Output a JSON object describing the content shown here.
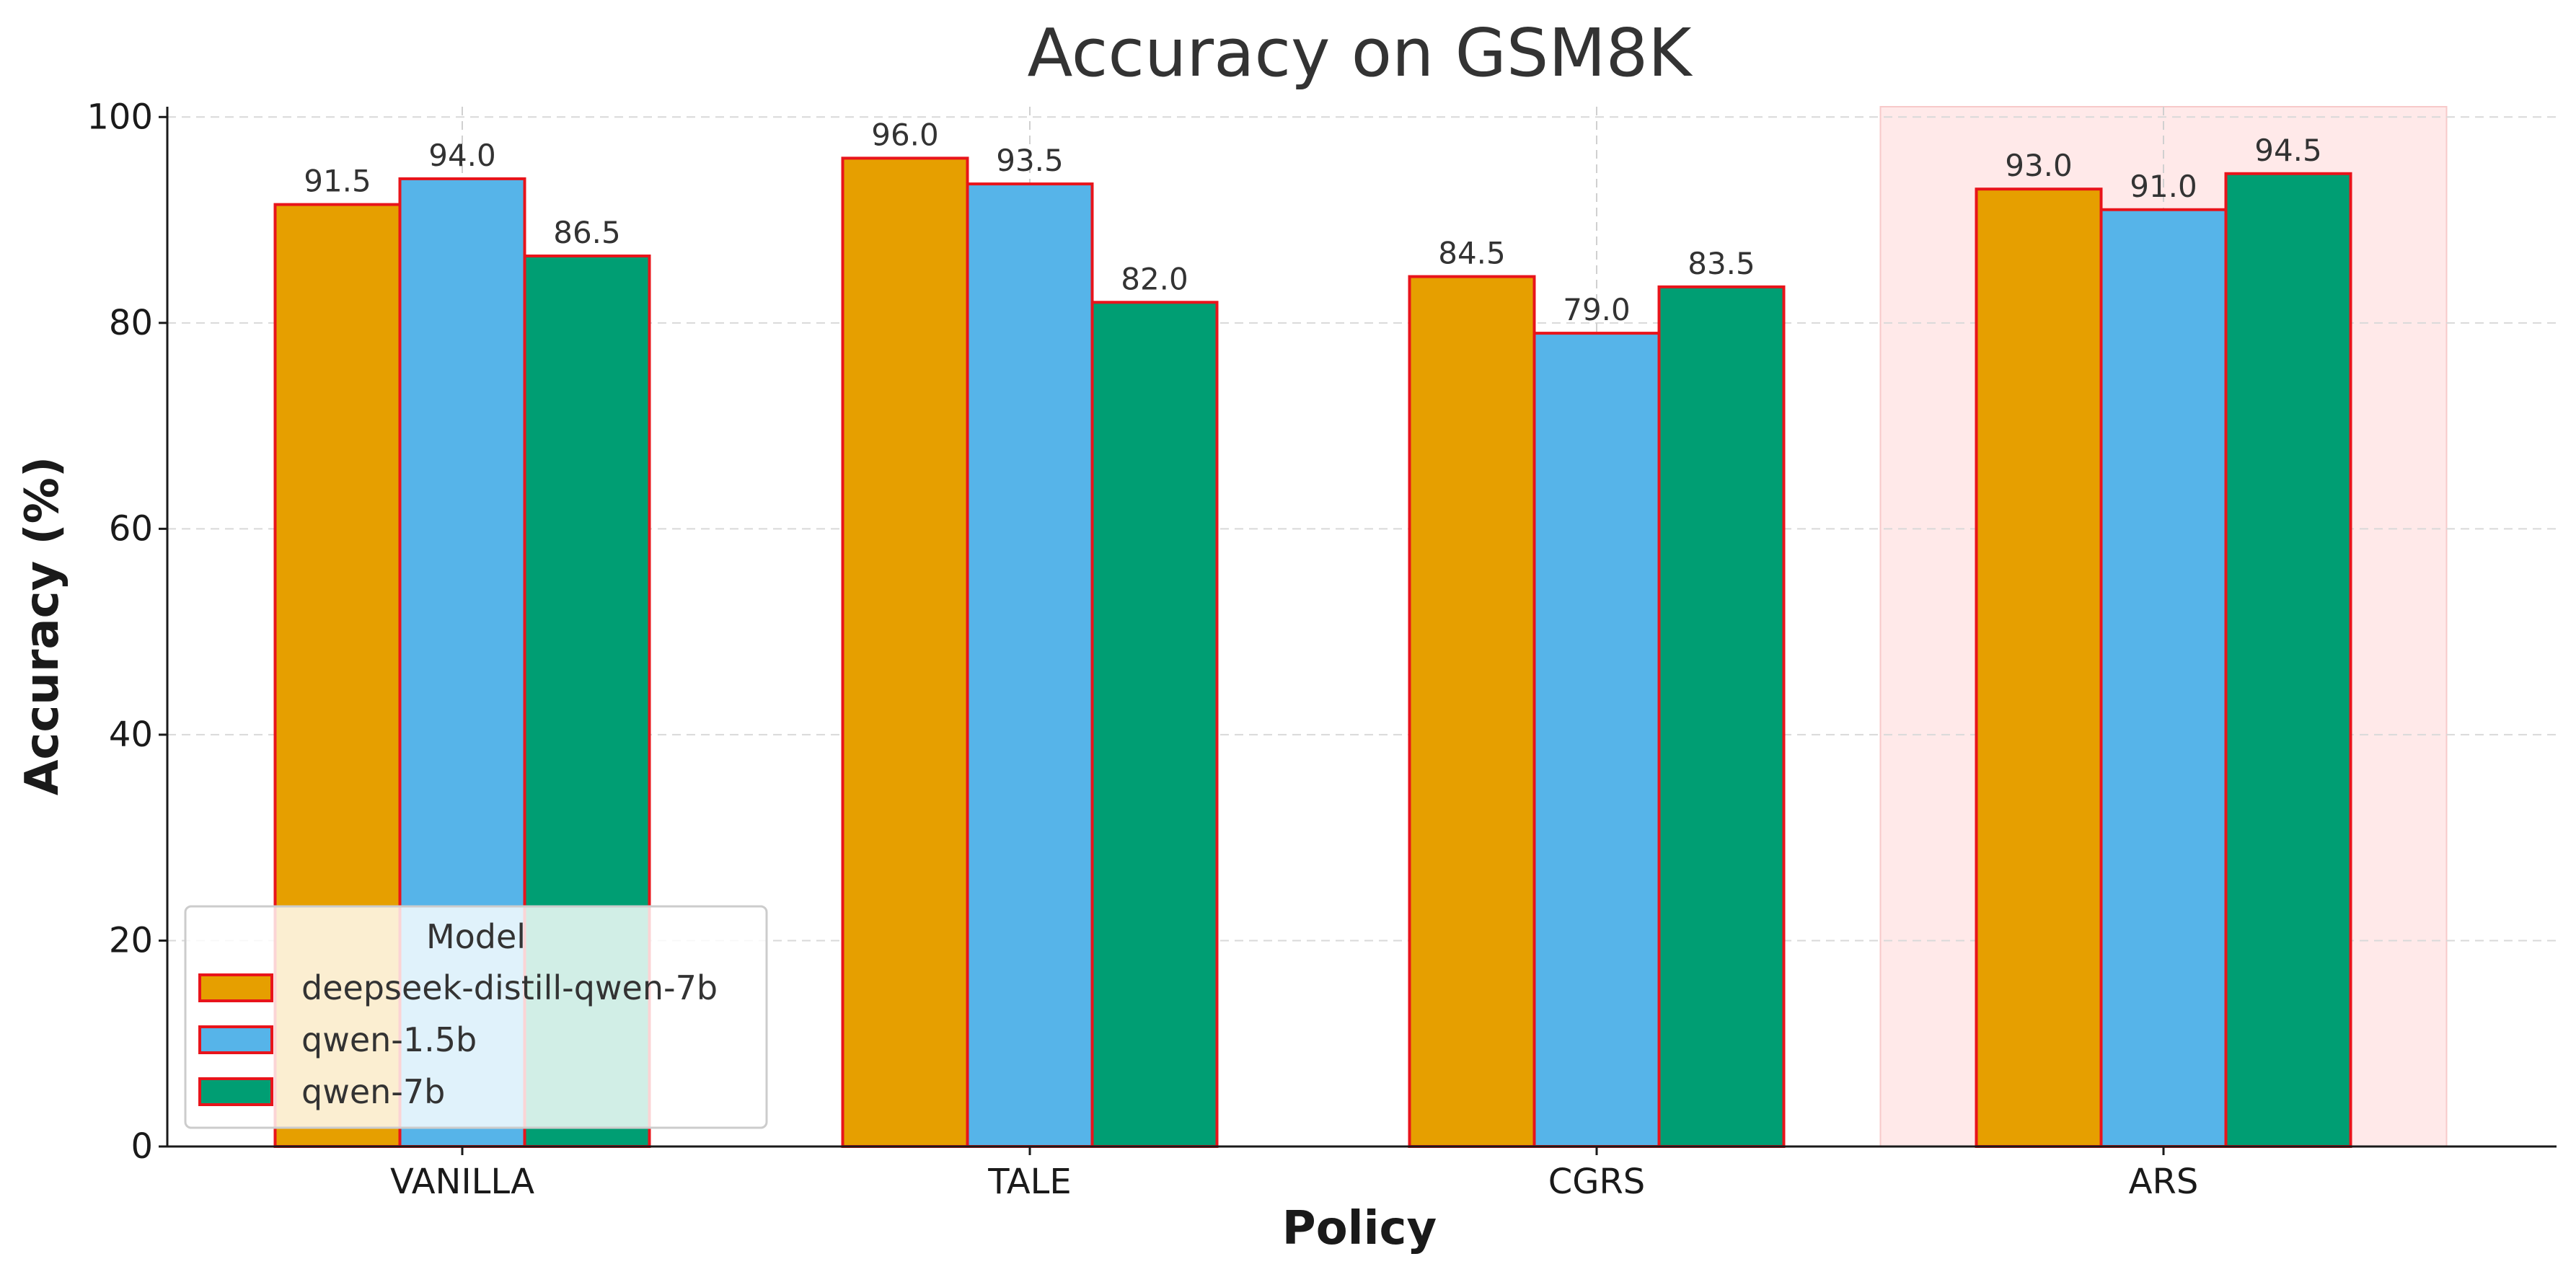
{
  "chart_data": {
    "type": "bar",
    "title": "Accuracy on GSM8K",
    "xlabel": "Policy",
    "ylabel": "Accuracy (%)",
    "categories": [
      "VANILLA",
      "TALE",
      "CGRS",
      "ARS"
    ],
    "series": [
      {
        "name": "deepseek-distill-qwen-7b",
        "values": [
          91.5,
          96.0,
          84.5,
          93.0
        ],
        "color": "#E69F00"
      },
      {
        "name": "qwen-1.5b",
        "values": [
          94.0,
          93.5,
          79.0,
          91.0
        ],
        "color": "#56B4E9"
      },
      {
        "name": "qwen-7b",
        "values": [
          86.5,
          82.0,
          83.5,
          94.5
        ],
        "color": "#009E73"
      }
    ],
    "ylim": [
      0,
      101
    ],
    "yticks": [
      0,
      20,
      40,
      60,
      80,
      100
    ],
    "grid": true,
    "bar_edge_color": "#E8141B",
    "highlight_category": "ARS",
    "highlight_color": "#FFE5E5",
    "legend": {
      "title": "Model",
      "placement": "lower-left"
    }
  }
}
